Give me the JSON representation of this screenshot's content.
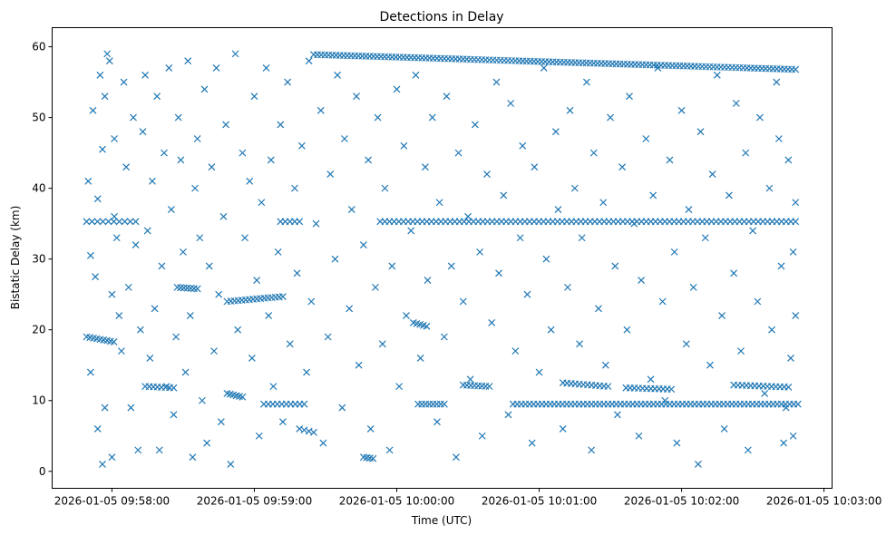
{
  "chart_data": {
    "type": "scatter",
    "title": "Detections in Delay",
    "xlabel": "Time (UTC)",
    "ylabel": "Bistatic Delay (km)",
    "x_units": "seconds after 2026-01-05 09:58:00 UTC",
    "xlim": [
      -25.2,
      303.4
    ],
    "ylim": [
      -2.4,
      62.7
    ],
    "xticks": [
      0,
      60,
      120,
      180,
      240,
      300
    ],
    "xtick_labels": [
      "2026-01-05 09:58:00",
      "2026-01-05 09:59:00",
      "2026-01-05 10:00:00",
      "2026-01-05 10:01:00",
      "2026-01-05 10:02:00",
      "2026-01-05 10:03:00"
    ],
    "yticks": [
      0,
      10,
      20,
      30,
      40,
      50,
      60
    ],
    "ytick_labels": [
      "0",
      "10",
      "20",
      "30",
      "40",
      "50",
      "60"
    ],
    "marker": "x",
    "color": "#1f77b4",
    "grid": false,
    "tracks": [
      {
        "t": [
          85,
          288
        ],
        "d": [
          58.9,
          56.8
        ],
        "n": 130
      },
      {
        "t": [
          -10.7,
          10
        ],
        "d": [
          35.3,
          35.3
        ],
        "n": 10
      },
      {
        "t": [
          71,
          79
        ],
        "d": [
          35.3,
          35.3
        ],
        "n": 5
      },
      {
        "t": [
          113,
          288
        ],
        "d": [
          35.3,
          35.3
        ],
        "n": 90
      },
      {
        "t": [
          -10.7,
          0.8
        ],
        "d": [
          19,
          18.3
        ],
        "n": 9
      },
      {
        "t": [
          14,
          26
        ],
        "d": [
          12,
          11.8
        ],
        "n": 8
      },
      {
        "t": [
          27.5,
          36
        ],
        "d": [
          26,
          25.8
        ],
        "n": 7
      },
      {
        "t": [
          48.5,
          72
        ],
        "d": [
          24,
          24.7
        ],
        "n": 16
      },
      {
        "t": [
          48.5,
          55
        ],
        "d": [
          11,
          10.5
        ],
        "n": 6
      },
      {
        "t": [
          64,
          81
        ],
        "d": [
          9.5,
          9.5
        ],
        "n": 10
      },
      {
        "t": [
          127,
          132.6
        ],
        "d": [
          21,
          20.5
        ],
        "n": 5
      },
      {
        "t": [
          129,
          140
        ],
        "d": [
          9.5,
          9.5
        ],
        "n": 8
      },
      {
        "t": [
          148,
          159
        ],
        "d": [
          12.2,
          12
        ],
        "n": 8
      },
      {
        "t": [
          169,
          289
        ],
        "d": [
          9.5,
          9.5
        ],
        "n": 70
      },
      {
        "t": [
          190,
          209
        ],
        "d": [
          12.5,
          12
        ],
        "n": 12
      },
      {
        "t": [
          216.6,
          235.7
        ],
        "d": [
          11.8,
          11.6
        ],
        "n": 12
      },
      {
        "t": [
          262,
          285
        ],
        "d": [
          12.2,
          11.9
        ],
        "n": 14
      },
      {
        "t": [
          106,
          110
        ],
        "d": [
          2,
          1.8
        ],
        "n": 4
      },
      {
        "t": [
          79,
          85
        ],
        "d": [
          6,
          5.5
        ],
        "n": 4
      }
    ],
    "points": [
      [
        -10,
        41
      ],
      [
        -9,
        30.5
      ],
      [
        -8,
        51
      ],
      [
        -7,
        27.5
      ],
      [
        -6,
        38.5
      ],
      [
        -5,
        56
      ],
      [
        -4,
        45.5
      ],
      [
        -3,
        53
      ],
      [
        -2,
        59
      ],
      [
        -1,
        58
      ],
      [
        0,
        25
      ],
      [
        1,
        47
      ],
      [
        2,
        33
      ],
      [
        3,
        22
      ],
      [
        -6,
        6
      ],
      [
        -4,
        1
      ],
      [
        -9,
        14
      ],
      [
        -3,
        9
      ],
      [
        0,
        2
      ],
      [
        1,
        36
      ],
      [
        4,
        17
      ],
      [
        5,
        55
      ],
      [
        6,
        43
      ],
      [
        7,
        26
      ],
      [
        8,
        9
      ],
      [
        9,
        50
      ],
      [
        10,
        32
      ],
      [
        11,
        3
      ],
      [
        12,
        20
      ],
      [
        13,
        48
      ],
      [
        14,
        56
      ],
      [
        15,
        34
      ],
      [
        16,
        16
      ],
      [
        17,
        41
      ],
      [
        18,
        23
      ],
      [
        19,
        53
      ],
      [
        20,
        3
      ],
      [
        21,
        29
      ],
      [
        22,
        45
      ],
      [
        23,
        12
      ],
      [
        24,
        57
      ],
      [
        25,
        37
      ],
      [
        26,
        8
      ],
      [
        27,
        19
      ],
      [
        28,
        50
      ],
      [
        29,
        44
      ],
      [
        30,
        31
      ],
      [
        31,
        14
      ],
      [
        32,
        58
      ],
      [
        33,
        22
      ],
      [
        34,
        2
      ],
      [
        35,
        40
      ],
      [
        36,
        47
      ],
      [
        37,
        33
      ],
      [
        38,
        10
      ],
      [
        39,
        54
      ],
      [
        40,
        4
      ],
      [
        41,
        29
      ],
      [
        42,
        43
      ],
      [
        43,
        17
      ],
      [
        44,
        57
      ],
      [
        45,
        25
      ],
      [
        46,
        7
      ],
      [
        47,
        36
      ],
      [
        48,
        49
      ],
      [
        50,
        1
      ],
      [
        52,
        59
      ],
      [
        53,
        20
      ],
      [
        55,
        45
      ],
      [
        56,
        33
      ],
      [
        58,
        41
      ],
      [
        59,
        16
      ],
      [
        60,
        53
      ],
      [
        61,
        27
      ],
      [
        62,
        5
      ],
      [
        63,
        38
      ],
      [
        65,
        57
      ],
      [
        66,
        22
      ],
      [
        67,
        44
      ],
      [
        68,
        12
      ],
      [
        70,
        31
      ],
      [
        71,
        49
      ],
      [
        72,
        7
      ],
      [
        74,
        55
      ],
      [
        75,
        18
      ],
      [
        77,
        40
      ],
      [
        78,
        28
      ],
      [
        80,
        46
      ],
      [
        82,
        14
      ],
      [
        83,
        58
      ],
      [
        84,
        24
      ],
      [
        86,
        35
      ],
      [
        88,
        51
      ],
      [
        89,
        4
      ],
      [
        91,
        19
      ],
      [
        92,
        42
      ],
      [
        94,
        30
      ],
      [
        95,
        56
      ],
      [
        97,
        9
      ],
      [
        98,
        47
      ],
      [
        100,
        23
      ],
      [
        101,
        37
      ],
      [
        103,
        53
      ],
      [
        104,
        15
      ],
      [
        106,
        32
      ],
      [
        108,
        44
      ],
      [
        109,
        6
      ],
      [
        111,
        26
      ],
      [
        112,
        50
      ],
      [
        114,
        18
      ],
      [
        115,
        40
      ],
      [
        117,
        3
      ],
      [
        118,
        29
      ],
      [
        120,
        54
      ],
      [
        121,
        12
      ],
      [
        123,
        46
      ],
      [
        124,
        22
      ],
      [
        126,
        34
      ],
      [
        128,
        56
      ],
      [
        130,
        16
      ],
      [
        132,
        43
      ],
      [
        133,
        27
      ],
      [
        135,
        50
      ],
      [
        137,
        7
      ],
      [
        138,
        38
      ],
      [
        140,
        19
      ],
      [
        141,
        53
      ],
      [
        143,
        29
      ],
      [
        145,
        2
      ],
      [
        146,
        45
      ],
      [
        148,
        24
      ],
      [
        150,
        36
      ],
      [
        151,
        13
      ],
      [
        153,
        49
      ],
      [
        155,
        31
      ],
      [
        156,
        5
      ],
      [
        158,
        42
      ],
      [
        160,
        21
      ],
      [
        162,
        55
      ],
      [
        163,
        28
      ],
      [
        165,
        39
      ],
      [
        167,
        8
      ],
      [
        168,
        52
      ],
      [
        170,
        17
      ],
      [
        172,
        33
      ],
      [
        173,
        46
      ],
      [
        175,
        25
      ],
      [
        177,
        4
      ],
      [
        178,
        43
      ],
      [
        180,
        14
      ],
      [
        182,
        57
      ],
      [
        183,
        30
      ],
      [
        185,
        20
      ],
      [
        187,
        48
      ],
      [
        188,
        37
      ],
      [
        190,
        6
      ],
      [
        192,
        26
      ],
      [
        193,
        51
      ],
      [
        195,
        40
      ],
      [
        197,
        18
      ],
      [
        198,
        33
      ],
      [
        200,
        55
      ],
      [
        202,
        3
      ],
      [
        203,
        45
      ],
      [
        205,
        23
      ],
      [
        207,
        38
      ],
      [
        208,
        15
      ],
      [
        210,
        50
      ],
      [
        212,
        29
      ],
      [
        213,
        8
      ],
      [
        215,
        43
      ],
      [
        217,
        20
      ],
      [
        218,
        53
      ],
      [
        220,
        35
      ],
      [
        222,
        5
      ],
      [
        223,
        27
      ],
      [
        225,
        47
      ],
      [
        227,
        13
      ],
      [
        228,
        39
      ],
      [
        230,
        57
      ],
      [
        232,
        24
      ],
      [
        233,
        10
      ],
      [
        235,
        44
      ],
      [
        237,
        31
      ],
      [
        238,
        4
      ],
      [
        240,
        51
      ],
      [
        242,
        18
      ],
      [
        243,
        37
      ],
      [
        245,
        26
      ],
      [
        247,
        1
      ],
      [
        248,
        48
      ],
      [
        250,
        33
      ],
      [
        252,
        15
      ],
      [
        253,
        42
      ],
      [
        255,
        56
      ],
      [
        257,
        22
      ],
      [
        258,
        6
      ],
      [
        260,
        39
      ],
      [
        262,
        28
      ],
      [
        263,
        52
      ],
      [
        265,
        17
      ],
      [
        267,
        45
      ],
      [
        268,
        3
      ],
      [
        270,
        34
      ],
      [
        272,
        24
      ],
      [
        273,
        50
      ],
      [
        275,
        11
      ],
      [
        277,
        40
      ],
      [
        278,
        20
      ],
      [
        280,
        55
      ],
      [
        282,
        29
      ],
      [
        283,
        4
      ],
      [
        285,
        44
      ],
      [
        286,
        16
      ],
      [
        287,
        31
      ],
      [
        288,
        38
      ],
      [
        288,
        22
      ],
      [
        287,
        5
      ],
      [
        284,
        9
      ],
      [
        281,
        47
      ]
    ]
  }
}
